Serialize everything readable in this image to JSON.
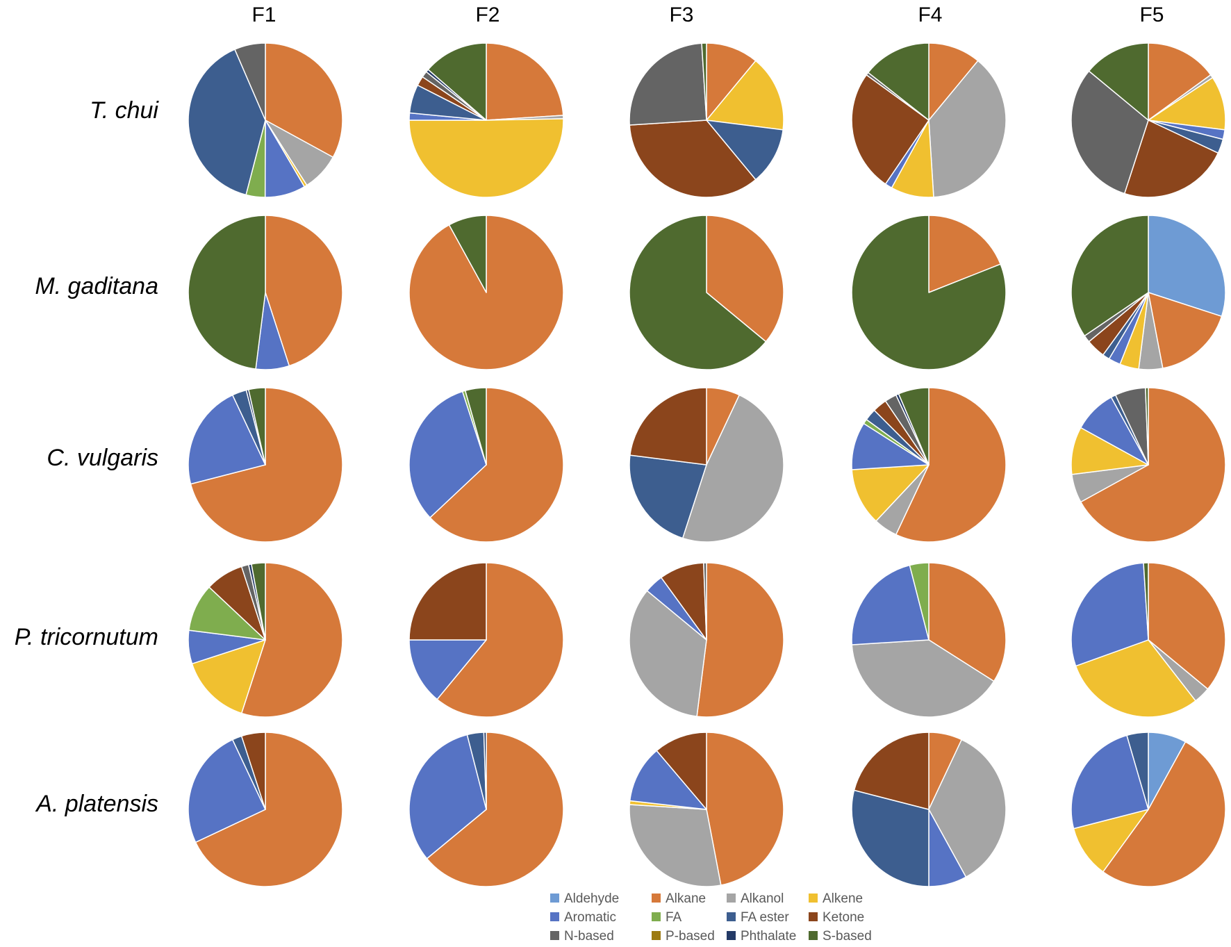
{
  "chart_data": {
    "type": "pie",
    "columns": [
      "F1",
      "F2",
      "F3",
      "F4",
      "F5"
    ],
    "rows": [
      "T. chui",
      "M. gaditana",
      "C. vulgaris",
      "P. tricornutum",
      "A. platensis"
    ],
    "categories": [
      "Aldehyde",
      "Alkane",
      "Alkanol",
      "Alkene",
      "Aromatic",
      "FA",
      "FA ester",
      "Ketone",
      "N-based",
      "P-based",
      "Phthalate",
      "S-based"
    ],
    "colors": {
      "Aldehyde": "#6E9BD4",
      "Alkane": "#D6793A",
      "Alkanol": "#A5A5A5",
      "Alkene": "#F0C030",
      "Aromatic": "#5673C4",
      "FA": "#7FAD4E",
      "FA ester": "#3D5E8F",
      "Ketone": "#8B451C",
      "N-based": "#646464",
      "P-based": "#9C7A12",
      "Phthalate": "#243A66",
      "S-based": "#4F6A2F"
    },
    "pies": [
      [
        {
          "Alkane": 33,
          "Alkanol": 8,
          "Alkene": 0.6,
          "Aromatic": 8.5,
          "FA": 4,
          "FA ester": 39.5,
          "N-based": 6.5
        },
        {
          "Alkane": 24,
          "Alkanol": 0.7,
          "Alkene": 50.3,
          "Aromatic": 1.5,
          "FA ester": 6,
          "Ketone": 2,
          "N-based": 1.3,
          "Phthalate": 0.6,
          "S-based": 13.6
        },
        {
          "Alkane": 11,
          "Alkene": 16,
          "FA ester": 12,
          "Ketone": 35,
          "N-based": 25,
          "S-based": 1
        },
        {
          "Alkane": 11,
          "Alkanol": 38,
          "Alkene": 9,
          "Aromatic": 1.5,
          "Ketone": 25.5,
          "N-based": 0.6,
          "S-based": 14.4
        },
        {
          "Alkane": 15,
          "Alkanol": 0.7,
          "Alkene": 11.3,
          "Aromatic": 2,
          "FA ester": 3,
          "Ketone": 23,
          "N-based": 31,
          "S-based": 14
        }
      ],
      [
        {
          "Alkane": 45,
          "Aromatic": 7,
          "S-based": 48
        },
        {
          "Alkane": 92,
          "S-based": 8
        },
        {
          "Alkane": 36,
          "S-based": 64
        },
        {
          "Alkane": 19,
          "S-based": 81
        },
        {
          "Aldehyde": 30,
          "Alkane": 17,
          "Alkanol": 5,
          "Alkene": 4,
          "Aromatic": 2.5,
          "FA ester": 1.5,
          "Ketone": 4,
          "N-based": 1.5,
          "S-based": 34.5
        }
      ],
      [
        {
          "Alkane": 71,
          "Aromatic": 22,
          "FA ester": 3,
          "Phthalate": 0.5,
          "S-based": 3.5
        },
        {
          "Alkane": 63,
          "Aromatic": 32,
          "FA": 0.6,
          "S-based": 4.4
        },
        {
          "Alkane": 7,
          "Alkanol": 48,
          "FA ester": 22,
          "Ketone": 23
        },
        {
          "Alkane": 57,
          "Alkanol": 5,
          "Alkene": 12,
          "Aromatic": 10,
          "FA": 1,
          "FA ester": 2.5,
          "Ketone": 3,
          "N-based": 2.5,
          "Phthalate": 0.6,
          "S-based": 6.4
        },
        {
          "Alkane": 67,
          "Alkanol": 6,
          "Alkene": 10,
          "Aromatic": 9,
          "FA ester": 1,
          "N-based": 6.4,
          "S-based": 0.6
        }
      ],
      [
        {
          "Alkane": 55,
          "Alkene": 15,
          "Aromatic": 7,
          "FA": 10,
          "Ketone": 8,
          "N-based": 1.5,
          "Phthalate": 0.6,
          "S-based": 2.9
        },
        {
          "Alkane": 61,
          "Aromatic": 14,
          "Ketone": 25
        },
        {
          "Alkane": 52,
          "Alkanol": 34,
          "Aromatic": 4,
          "Ketone": 9.4,
          "N-based": 0.6
        },
        {
          "Alkane": 34,
          "Alkanol": 40,
          "Aromatic": 22,
          "FA": 4
        },
        {
          "Alkane": 36,
          "Alkanol": 3.5,
          "Alkene": 30,
          "Aromatic": 29.5,
          "S-based": 1
        }
      ],
      [
        {
          "Alkane": 68,
          "Aromatic": 25,
          "FA ester": 2,
          "Ketone": 5
        },
        {
          "Alkane": 64,
          "Aromatic": 32,
          "FA ester": 3.5,
          "Phthalate": 0.5
        },
        {
          "Alkane": 47,
          "Alkanol": 29,
          "Alkene": 0.8,
          "Aromatic": 12,
          "Ketone": 11.2
        },
        {
          "Alkane": 7,
          "Alkanol": 35,
          "Aromatic": 8,
          "FA ester": 29,
          "Ketone": 21
        },
        {
          "Aldehyde": 8,
          "Alkane": 52,
          "Alkene": 11,
          "Aromatic": 24.5,
          "FA ester": 4.5
        }
      ]
    ],
    "legend": {
      "position": "bottom-right",
      "columns": 4,
      "items": [
        "Aldehyde",
        "Alkane",
        "Alkanol",
        "Alkene",
        "Aromatic",
        "FA",
        "FA ester",
        "Ketone",
        "N-based",
        "P-based",
        "Phthalate",
        "S-based"
      ]
    }
  }
}
